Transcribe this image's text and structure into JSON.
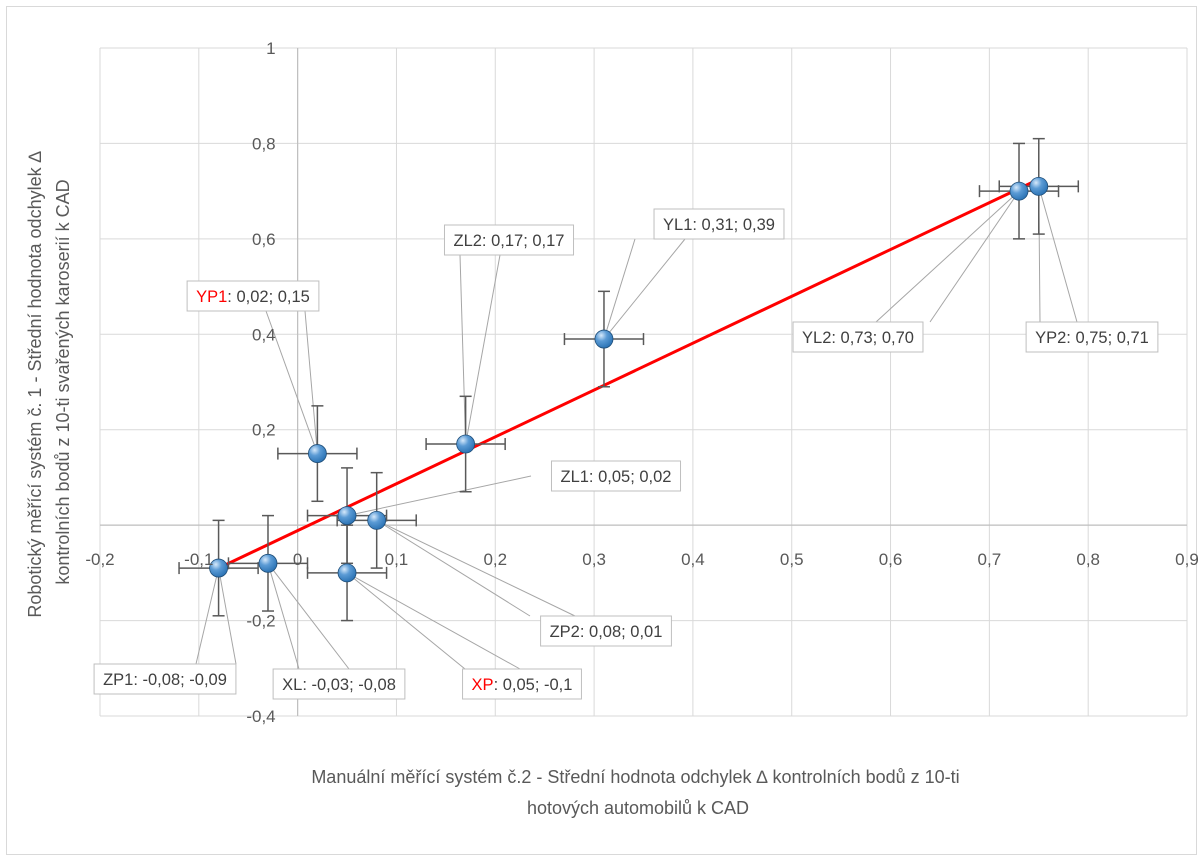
{
  "chart_data": {
    "type": "scatter",
    "xlabel": "Manuální měřící systém č.2 - Střední hodnota odchylek ∆ kontrolních bodů z 10-ti hotových automobilů k CAD",
    "xlabel_lines": [
      "Manuální měřící systém č.2 - Střední hodnota odchylek ∆ kontrolních bodů z 10-ti",
      "hotových automobilů k CAD"
    ],
    "ylabel": "Robotický měřící systém č. 1 - Střední hodnota odchylek ∆ kontrolních bodů z 10-ti svařených karoserií k CAD",
    "ylabel_lines": [
      "Robotický měřící systém č. 1 - Střední hodnota odchylek ∆",
      "kontrolních bodů z 10-ti svařených karoserií k CAD"
    ],
    "xlim": [
      -0.2,
      0.9
    ],
    "ylim": [
      -0.4,
      1.0
    ],
    "x_ticks": [
      -0.2,
      -0.1,
      0,
      0.1,
      0.2,
      0.3,
      0.4,
      0.5,
      0.6,
      0.7,
      0.8,
      0.9
    ],
    "x_tick_labels": [
      "-0,2",
      "-0,1",
      "0",
      "0,1",
      "0,2",
      "0,3",
      "0,4",
      "0,5",
      "0,6",
      "0,7",
      "0,8",
      "0,9"
    ],
    "y_ticks": [
      -0.4,
      -0.2,
      0,
      0.2,
      0.4,
      0.6,
      0.8,
      1.0
    ],
    "y_tick_labels": [
      "-0,4",
      "-0,2",
      "",
      "0,2",
      "0,4",
      "0,6",
      "0,8",
      "1"
    ],
    "grid": true,
    "error_bars": {
      "x": 0.04,
      "y": 0.1
    },
    "trendline": {
      "x": [
        -0.08,
        0.75
      ],
      "y": [
        -0.09,
        0.725
      ],
      "color": "#ff0000"
    },
    "marker_color": "#2e75b6",
    "highlight_color": "#ff0000",
    "points": [
      {
        "name": "YL1",
        "x": 0.31,
        "y": 0.39,
        "label_name": "YL1",
        "label_value": ": 0,31; 0,39",
        "highlight": false
      },
      {
        "name": "ZL2",
        "x": 0.17,
        "y": 0.17,
        "label_name": "ZL2",
        "label_value": ": 0,17; 0,17",
        "highlight": false
      },
      {
        "name": "YP1",
        "x": 0.02,
        "y": 0.15,
        "label_name": "YP1",
        "label_value": ": 0,02; 0,15",
        "highlight": true
      },
      {
        "name": "YL2",
        "x": 0.73,
        "y": 0.7,
        "label_name": "YL2",
        "label_value": ": 0,73; 0,70",
        "highlight": false
      },
      {
        "name": "YP2",
        "x": 0.75,
        "y": 0.71,
        "label_name": "YP2",
        "label_value": ": 0,75; 0,71",
        "highlight": false
      },
      {
        "name": "ZL1",
        "x": 0.05,
        "y": 0.02,
        "label_name": "ZL1",
        "label_value": ": 0,05; 0,02",
        "highlight": false
      },
      {
        "name": "ZP2",
        "x": 0.08,
        "y": 0.01,
        "label_name": "ZP2",
        "label_value": ": 0,08; 0,01",
        "highlight": false
      },
      {
        "name": "ZP1",
        "x": -0.08,
        "y": -0.09,
        "label_name": "ZP1",
        "label_value": ": -0,08; -0,09",
        "highlight": false
      },
      {
        "name": "XL",
        "x": -0.03,
        "y": -0.08,
        "label_name": "XL",
        "label_value": ": -0,03; -0,08",
        "highlight": false
      },
      {
        "name": "XP",
        "x": 0.05,
        "y": -0.1,
        "label_name": "XP",
        "label_value": ": 0,05; -0,1",
        "highlight": true
      }
    ]
  }
}
